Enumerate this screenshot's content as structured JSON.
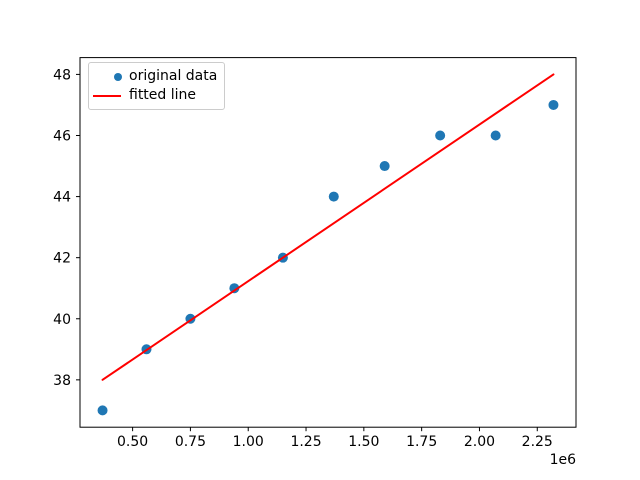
{
  "figure": {
    "background": "#ffffff"
  },
  "colors": {
    "scatter": "#1f77b4",
    "fitted_line": "#ff0000",
    "axis": "#000000",
    "legend_border": "#cccccc"
  },
  "legend": {
    "position": "upper left",
    "item1": "original data",
    "item2": "fitted line"
  },
  "axis_offset_label": "1e6",
  "chart_data": {
    "type": "scatter",
    "title": "",
    "xlabel": "",
    "ylabel": "",
    "grid": false,
    "x_axis_multiplier_label": "1e6",
    "xlim": [
      272500,
      2417500
    ],
    "ylim": [
      36.45,
      48.55
    ],
    "xticks": [
      500000,
      750000,
      1000000,
      1250000,
      1500000,
      1750000,
      2000000,
      2250000
    ],
    "xtick_labels": [
      "0.50",
      "0.75",
      "1.00",
      "1.25",
      "1.50",
      "1.75",
      "2.00",
      "2.25"
    ],
    "yticks": [
      38,
      40,
      42,
      44,
      46,
      48
    ],
    "ytick_labels": [
      "38",
      "40",
      "42",
      "44",
      "46",
      "48"
    ],
    "legend_position": "upper left",
    "series": [
      {
        "name": "original data",
        "type": "scatter",
        "marker": "circle",
        "color": "#1f77b4",
        "x": [
          370000,
          560000,
          750000,
          940000,
          1150000,
          1370000,
          1590000,
          1830000,
          2070000,
          2320000
        ],
        "y": [
          37,
          39,
          40,
          41,
          42,
          44,
          45,
          46,
          46,
          47
        ]
      },
      {
        "name": "fitted line",
        "type": "line",
        "color": "#ff0000",
        "x": [
          370000,
          2320000
        ],
        "y": [
          38.0,
          48.0
        ]
      }
    ]
  }
}
